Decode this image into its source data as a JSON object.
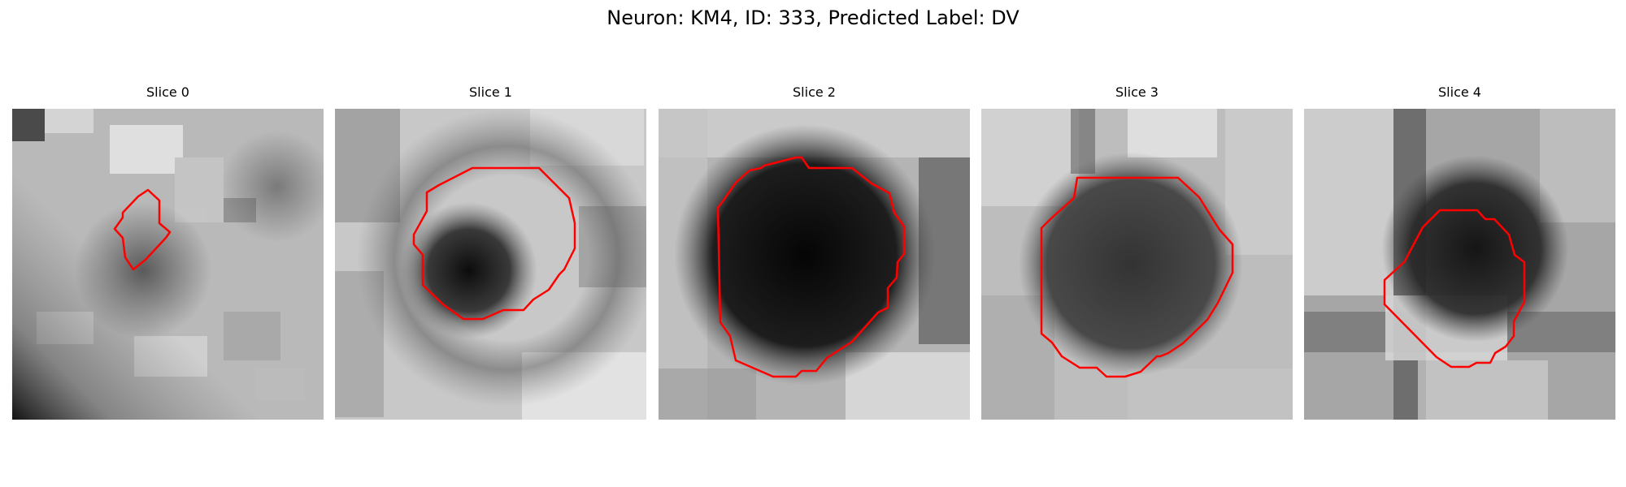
{
  "figure": {
    "title": "Neuron: KM4, ID: 333, Predicted Label: DV",
    "contour_color": "#ff0000"
  },
  "slices": [
    {
      "title": "Slice 0"
    },
    {
      "title": "Slice 1"
    },
    {
      "title": "Slice 2"
    },
    {
      "title": "Slice 3"
    },
    {
      "title": "Slice 4"
    }
  ]
}
